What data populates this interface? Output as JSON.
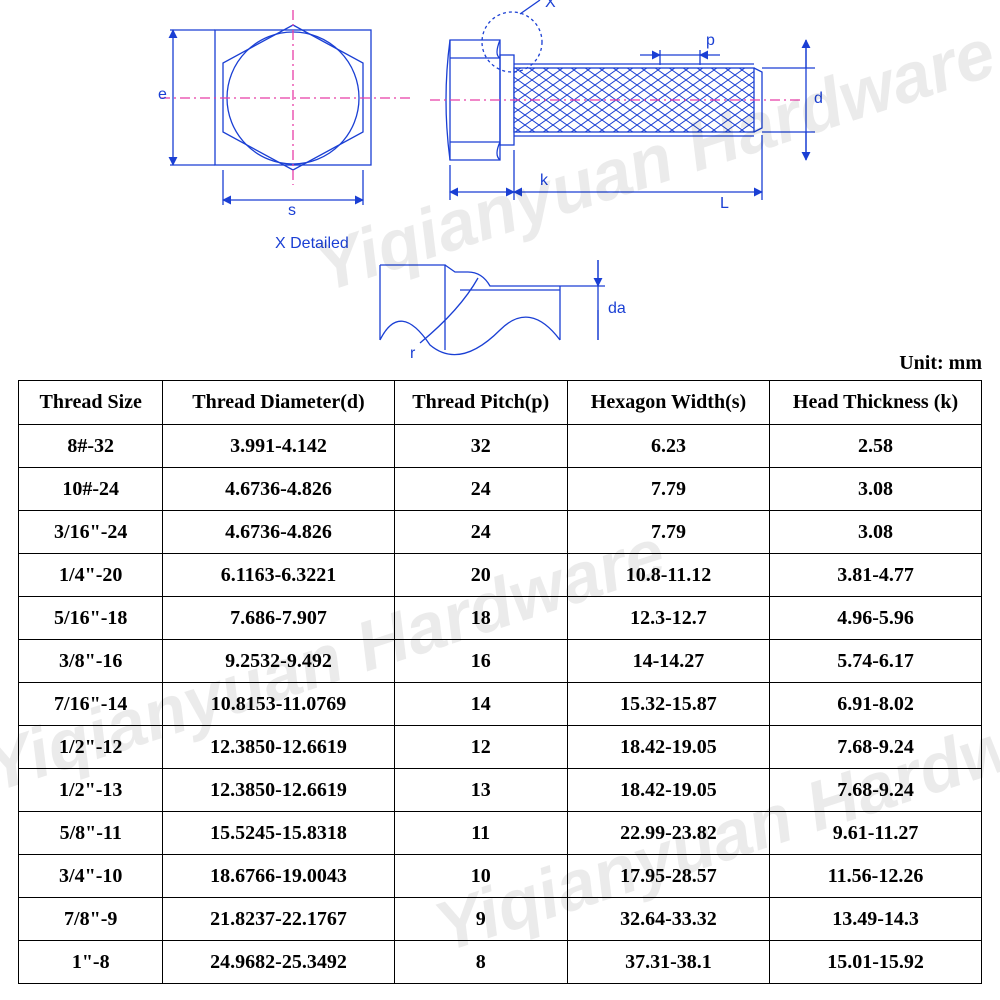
{
  "watermark_text": "Yiqianyuan Hardware",
  "unit_label": "Unit: mm",
  "diagram": {
    "stroke_blue": "#1a3fd4",
    "stroke_pink": "#e83ea8",
    "bg": "#ffffff",
    "labels": {
      "e": "e",
      "s": "s",
      "X": "X",
      "p": "p",
      "d": "d",
      "k": "k",
      "L": "L",
      "Xdet": "X Detailed",
      "r": "r",
      "da": "da"
    }
  },
  "table": {
    "columns": [
      "Thread Size",
      "Thread Diameter(d)",
      "Thread Pitch(p)",
      "Hexagon Width(s)",
      "Head Thickness (k)"
    ],
    "col_widths_pct": [
      15,
      24,
      18,
      21,
      22
    ],
    "rows": [
      [
        "8#-32",
        "3.991-4.142",
        "32",
        "6.23",
        "2.58"
      ],
      [
        "10#-24",
        "4.6736-4.826",
        "24",
        "7.79",
        "3.08"
      ],
      [
        "3/16\"-24",
        "4.6736-4.826",
        "24",
        "7.79",
        "3.08"
      ],
      [
        "1/4\"-20",
        "6.1163-6.3221",
        "20",
        "10.8-11.12",
        "3.81-4.77"
      ],
      [
        "5/16\"-18",
        "7.686-7.907",
        "18",
        "12.3-12.7",
        "4.96-5.96"
      ],
      [
        "3/8\"-16",
        "9.2532-9.492",
        "16",
        "14-14.27",
        "5.74-6.17"
      ],
      [
        "7/16\"-14",
        "10.8153-11.0769",
        "14",
        "15.32-15.87",
        "6.91-8.02"
      ],
      [
        "1/2\"-12",
        "12.3850-12.6619",
        "12",
        "18.42-19.05",
        "7.68-9.24"
      ],
      [
        "1/2\"-13",
        "12.3850-12.6619",
        "13",
        "18.42-19.05",
        "7.68-9.24"
      ],
      [
        "5/8\"-11",
        "15.5245-15.8318",
        "11",
        "22.99-23.82",
        "9.61-11.27"
      ],
      [
        "3/4\"-10",
        "18.6766-19.0043",
        "10",
        "17.95-28.57",
        "11.56-12.26"
      ],
      [
        "7/8\"-9",
        "21.8237-22.1767",
        "9",
        "32.64-33.32",
        "13.49-14.3"
      ],
      [
        "1\"-8",
        "24.9682-25.3492",
        "8",
        "37.31-38.1",
        "15.01-15.92"
      ]
    ]
  }
}
